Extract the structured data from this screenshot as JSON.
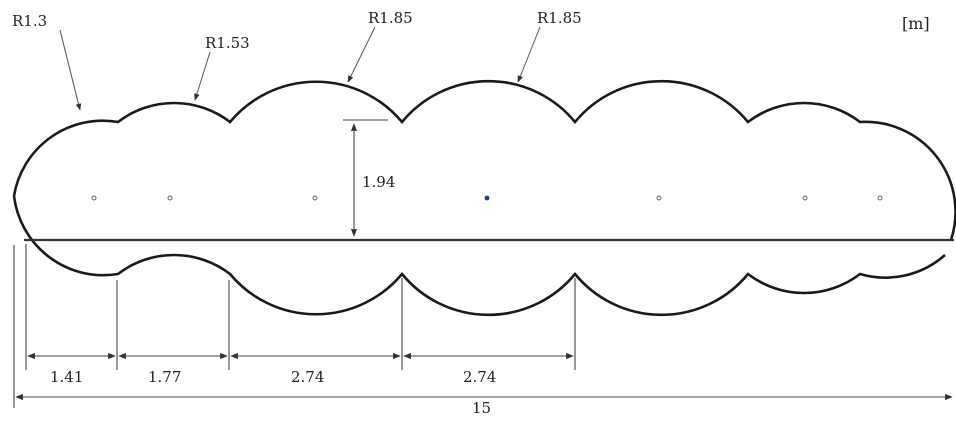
{
  "unit_label": "[m]",
  "radius_labels": [
    "R1.3",
    "R1.53",
    "R1.85",
    "R1.85"
  ],
  "height_label": "1.94",
  "spacing_labels": [
    "1.41",
    "1.77",
    "2.74",
    "2.74"
  ],
  "total_length_label": "15"
}
